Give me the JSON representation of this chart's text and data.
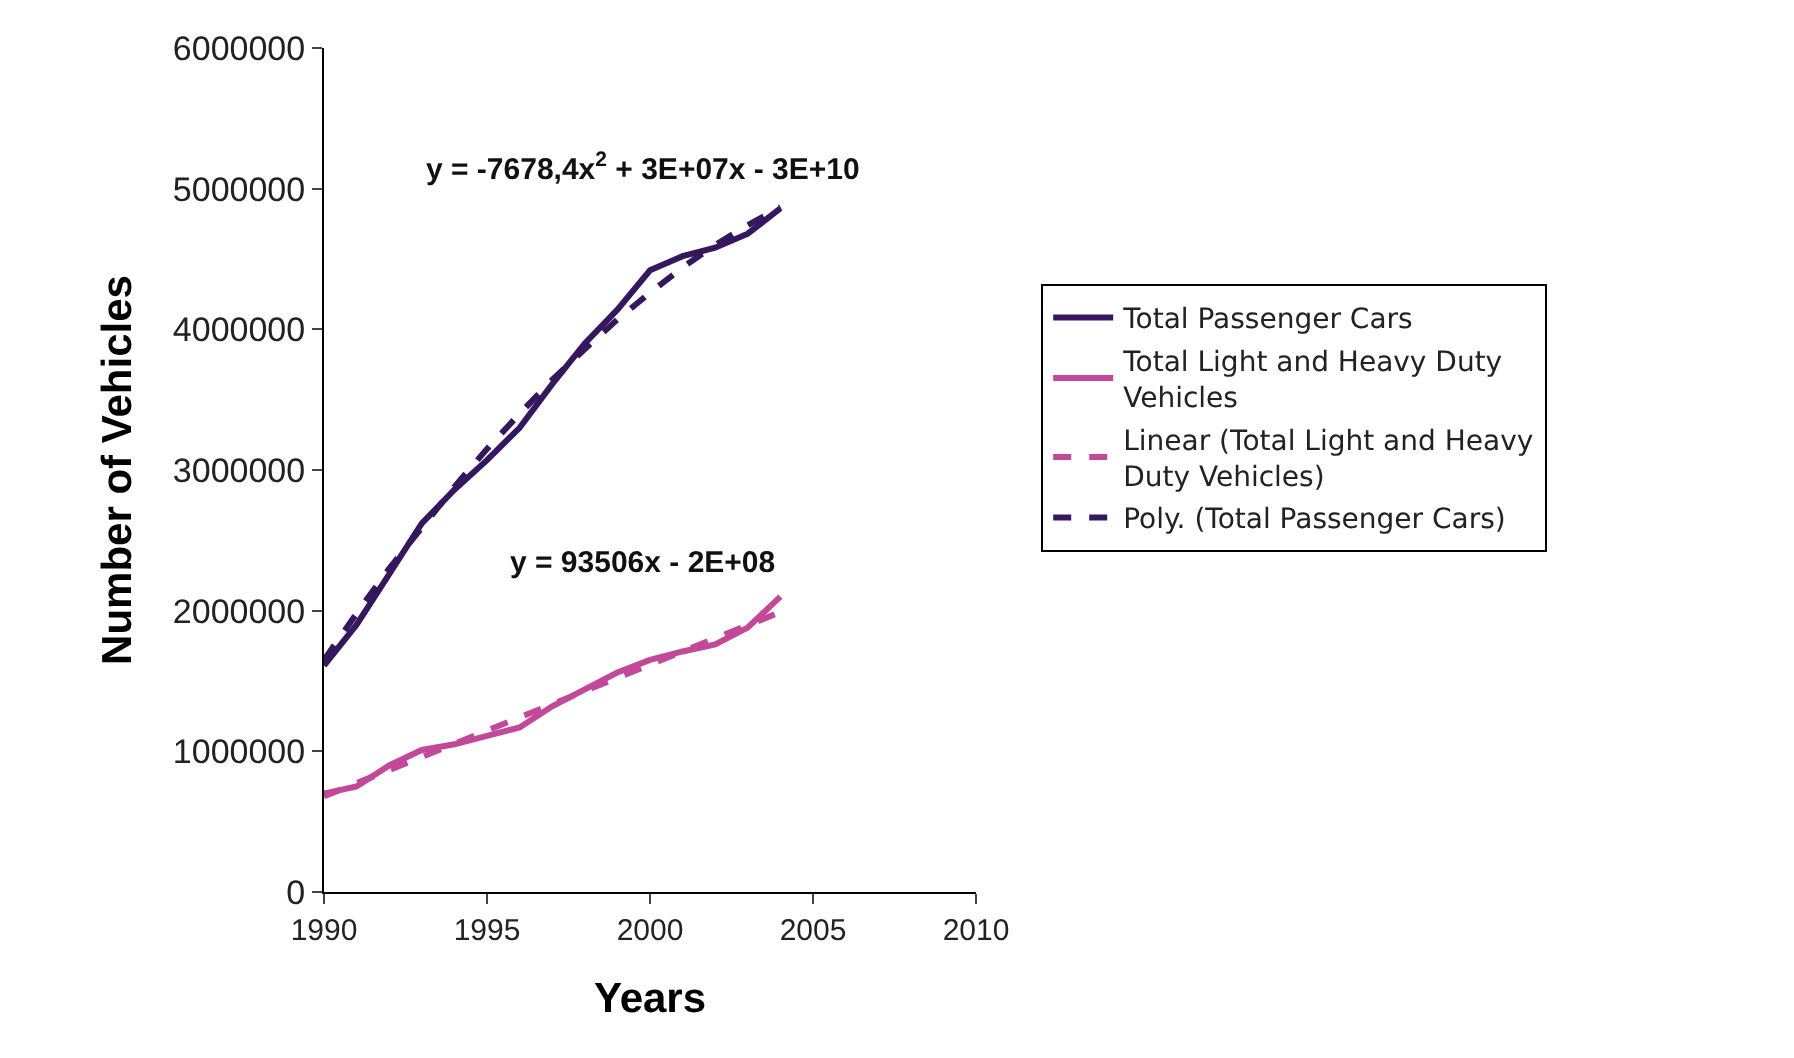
{
  "chart_data": {
    "type": "line",
    "xlabel": "Years",
    "ylabel": "Number of Vehicles",
    "x": [
      1990,
      1991,
      1992,
      1993,
      1994,
      1995,
      1996,
      1997,
      1998,
      1999,
      2000,
      2001,
      2002,
      2003,
      2004
    ],
    "series": [
      {
        "name": "Total Passenger Cars",
        "color": "#35175e",
        "line_style": "solid",
        "values": [
          1610000,
          1900000,
          2260000,
          2620000,
          2860000,
          3070000,
          3300000,
          3610000,
          3900000,
          4140000,
          4420000,
          4520000,
          4580000,
          4680000,
          4860000
        ]
      },
      {
        "name": "Total Light and Heavy Duty Vehicles",
        "color": "#c2489a",
        "line_style": "solid",
        "values": [
          700000,
          750000,
          900000,
          1010000,
          1050000,
          1110000,
          1170000,
          1320000,
          1440000,
          1560000,
          1650000,
          1710000,
          1760000,
          1880000,
          2100000
        ]
      },
      {
        "name": "Linear (Total Light and Heavy Duty Vehicles)",
        "color": "#c2489a",
        "line_style": "dashed",
        "x": [
          1990,
          2004
        ],
        "values": [
          680000,
          1990000
        ]
      },
      {
        "name": "Poly. (Total Passenger Cars)",
        "color": "#35175e",
        "line_style": "dashed",
        "values": [
          1650000,
          1980000,
          2300000,
          2590000,
          2880000,
          3150000,
          3400000,
          3640000,
          3860000,
          4070000,
          4260000,
          4440000,
          4600000,
          4740000,
          4870000
        ]
      }
    ],
    "annotations": [
      "y = -7678,4x$^{2}$ + 3E+07x - 3E+10",
      "y = 93506x - 2E+08"
    ],
    "xlim": [
      1990,
      2010
    ],
    "xticks": [
      1990,
      1995,
      2000,
      2005,
      2010
    ],
    "ylim": [
      0,
      6000000
    ],
    "yticks": [
      0,
      1000000,
      2000000,
      3000000,
      4000000,
      5000000,
      6000000
    ],
    "grid": false,
    "legend": "right",
    "marker": "none"
  }
}
